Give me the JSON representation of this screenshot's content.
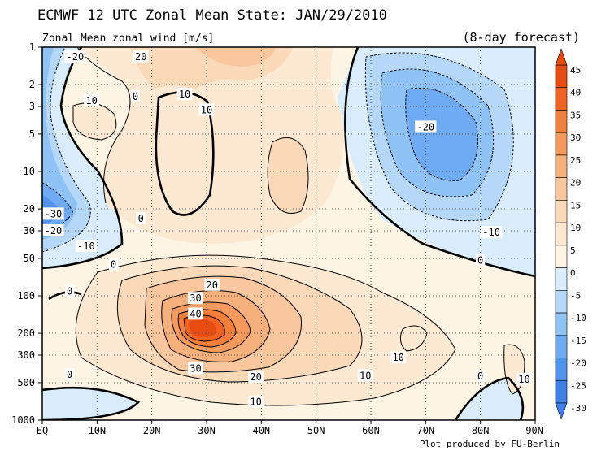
{
  "chart_data": {
    "type": "contour",
    "title": "ECMWF 12 UTC Zonal Mean State: JAN/29/2010",
    "subtitle": "Zonal Mean zonal wind [m/s]",
    "forecast_note": "(8-day forecast)",
    "credit": "Plot produced by FU-Berlin",
    "x_axis": {
      "ticks": [
        "EQ",
        "10N",
        "20N",
        "30N",
        "40N",
        "50N",
        "60N",
        "70N",
        "80N",
        "90N"
      ],
      "range": [
        0,
        90
      ]
    },
    "y_axis": {
      "scale": "log",
      "reversed": true,
      "ticks": [
        "1",
        "2",
        "3",
        "5",
        "10",
        "20",
        "30",
        "50",
        "100",
        "200",
        "300",
        "500",
        "1000"
      ],
      "tick_values": [
        1,
        2,
        3,
        5,
        10,
        20,
        30,
        50,
        100,
        200,
        300,
        500,
        1000
      ],
      "range": [
        1,
        1000
      ]
    },
    "grid": true,
    "colorbar": {
      "labels": [
        "45",
        "40",
        "35",
        "30",
        "25",
        "20",
        "15",
        "10",
        "5",
        "0",
        "-5",
        "-10",
        "-15",
        "-20",
        "-25",
        "-30"
      ],
      "values": [
        45,
        40,
        35,
        30,
        25,
        20,
        15,
        10,
        5,
        0,
        -5,
        -10,
        -15,
        -20,
        -25,
        -30
      ],
      "colors": [
        "#e84a10",
        "#f26322",
        "#f47f3a",
        "#f59a5c",
        "#f5b07c",
        "#f8c79e",
        "#fad9b8",
        "#fde9d2",
        "#fef4e4",
        "#d8ecfc",
        "#b6d8f8",
        "#8fc2f5",
        "#6eabf3",
        "#5094ef",
        "#3d80ea"
      ]
    },
    "contour_labels": [
      {
        "text": "-20",
        "lat": 6,
        "p": 1.2
      },
      {
        "text": "20",
        "lat": 18,
        "p": 1.2
      },
      {
        "text": "10",
        "lat": 9,
        "p": 2.7
      },
      {
        "text": "0",
        "lat": 17,
        "p": 2.5
      },
      {
        "text": "10",
        "lat": 26,
        "p": 2.4
      },
      {
        "text": "10",
        "lat": 30,
        "p": 3.2
      },
      {
        "text": "-20",
        "lat": 70,
        "p": 4.4
      },
      {
        "text": "-30",
        "lat": 2,
        "p": 22
      },
      {
        "text": "-20",
        "lat": 2,
        "p": 30
      },
      {
        "text": "-10",
        "lat": 8,
        "p": 40
      },
      {
        "text": "0",
        "lat": 18,
        "p": 24
      },
      {
        "text": "-10",
        "lat": 82,
        "p": 31
      },
      {
        "text": "0",
        "lat": 13,
        "p": 56
      },
      {
        "text": "0",
        "lat": 80,
        "p": 52
      },
      {
        "text": "0",
        "lat": 5,
        "p": 92
      },
      {
        "text": "20",
        "lat": 31,
        "p": 82
      },
      {
        "text": "30",
        "lat": 28,
        "p": 105
      },
      {
        "text": "40",
        "lat": 28,
        "p": 140
      },
      {
        "text": "10",
        "lat": 65,
        "p": 315
      },
      {
        "text": "30",
        "lat": 28,
        "p": 385
      },
      {
        "text": "20",
        "lat": 39,
        "p": 450
      },
      {
        "text": "0",
        "lat": 5,
        "p": 430
      },
      {
        "text": "10",
        "lat": 59,
        "p": 440
      },
      {
        "text": "0",
        "lat": 80,
        "p": 445
      },
      {
        "text": "10",
        "lat": 88,
        "p": 470
      },
      {
        "text": "10",
        "lat": 39,
        "p": 715
      }
    ]
  }
}
